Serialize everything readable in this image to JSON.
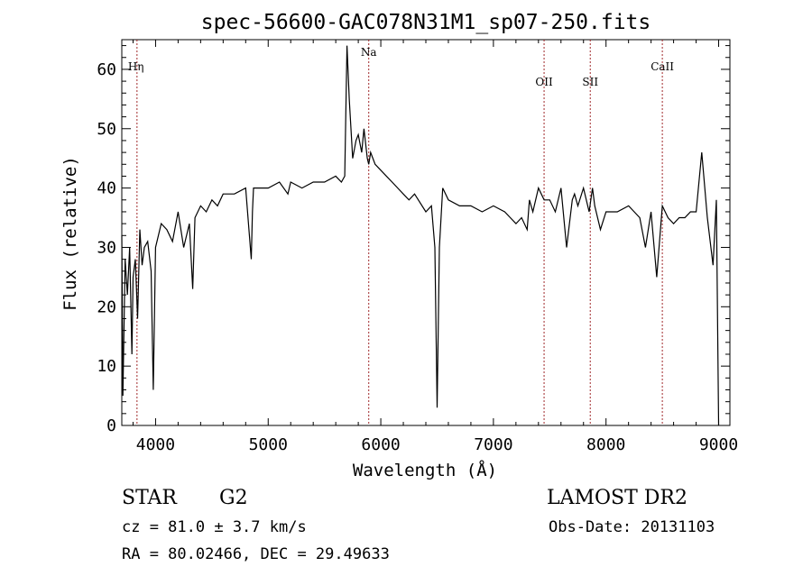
{
  "chart_data": {
    "type": "line",
    "title": "spec-56600-GAC078N31M1_sp07-250.fits",
    "xlabel": "Wavelength (Å)",
    "ylabel": "Flux (relative)",
    "xlim": [
      3700,
      9100
    ],
    "ylim": [
      0,
      65
    ],
    "xticks": [
      4000,
      5000,
      6000,
      7000,
      8000,
      9000
    ],
    "yticks": [
      0,
      10,
      20,
      30,
      40,
      50,
      60
    ],
    "grid": false,
    "lines": [
      {
        "label": "Hη",
        "x": 3835
      },
      {
        "label": "Na",
        "x": 5893
      },
      {
        "label": "OII",
        "x": 7450
      },
      {
        "label": "SII",
        "x": 7860
      },
      {
        "label": "CaII",
        "x": 8500
      }
    ],
    "series": [
      {
        "x": [
          3700,
          3710,
          3730,
          3750,
          3770,
          3790,
          3800,
          3820,
          3840,
          3860,
          3880,
          3900,
          3930,
          3960,
          3980,
          4000,
          4050,
          4100,
          4150,
          4200,
          4250,
          4300,
          4330,
          4350,
          4400,
          4450,
          4500,
          4550,
          4600,
          4700,
          4800,
          4850,
          4860,
          4870,
          4900,
          5000,
          5100,
          5175,
          5200,
          5300,
          5400,
          5500,
          5600,
          5650,
          5680,
          5700,
          5720,
          5750,
          5780,
          5800,
          5830,
          5850,
          5880,
          5893,
          5910,
          5950,
          6000,
          6050,
          6100,
          6150,
          6200,
          6250,
          6300,
          6400,
          6450,
          6480,
          6500,
          6520,
          6550,
          6600,
          6700,
          6800,
          6900,
          7000,
          7100,
          7150,
          7200,
          7250,
          7300,
          7320,
          7350,
          7400,
          7450,
          7500,
          7550,
          7600,
          7650,
          7700,
          7720,
          7750,
          7800,
          7850,
          7880,
          7900,
          7950,
          8000,
          8100,
          8200,
          8300,
          8350,
          8400,
          8450,
          8500,
          8550,
          8600,
          8650,
          8700,
          8750,
          8800,
          8850,
          8900,
          8950,
          8980,
          9000
        ],
        "values": [
          32,
          5,
          28,
          22,
          30,
          12,
          25,
          28,
          18,
          33,
          27,
          30,
          31,
          26,
          6,
          30,
          34,
          33,
          31,
          36,
          30,
          34,
          23,
          35,
          37,
          36,
          38,
          37,
          39,
          39,
          40,
          28,
          36,
          40,
          40,
          40,
          41,
          39,
          41,
          40,
          41,
          41,
          42,
          41,
          42,
          64,
          55,
          45,
          48,
          49,
          46,
          50,
          45,
          44,
          46,
          44,
          43,
          42,
          41,
          40,
          39,
          38,
          39,
          36,
          37,
          30,
          3,
          30,
          40,
          38,
          37,
          37,
          36,
          37,
          36,
          35,
          34,
          35,
          33,
          38,
          36,
          40,
          38,
          38,
          36,
          40,
          30,
          38,
          39,
          37,
          40,
          36,
          40,
          37,
          33,
          36,
          36,
          37,
          35,
          30,
          36,
          25,
          37,
          35,
          34,
          35,
          35,
          36,
          36,
          46,
          35,
          27,
          38,
          0
        ]
      }
    ]
  },
  "footer": {
    "class_label": "STAR",
    "subclass": "G2",
    "cz": "cz = 81.0 ± 3.7 km/s",
    "radec": "RA =  80.02466, DEC =  29.49633",
    "survey": "LAMOST DR2",
    "obsdate": "Obs-Date: 20131103"
  }
}
